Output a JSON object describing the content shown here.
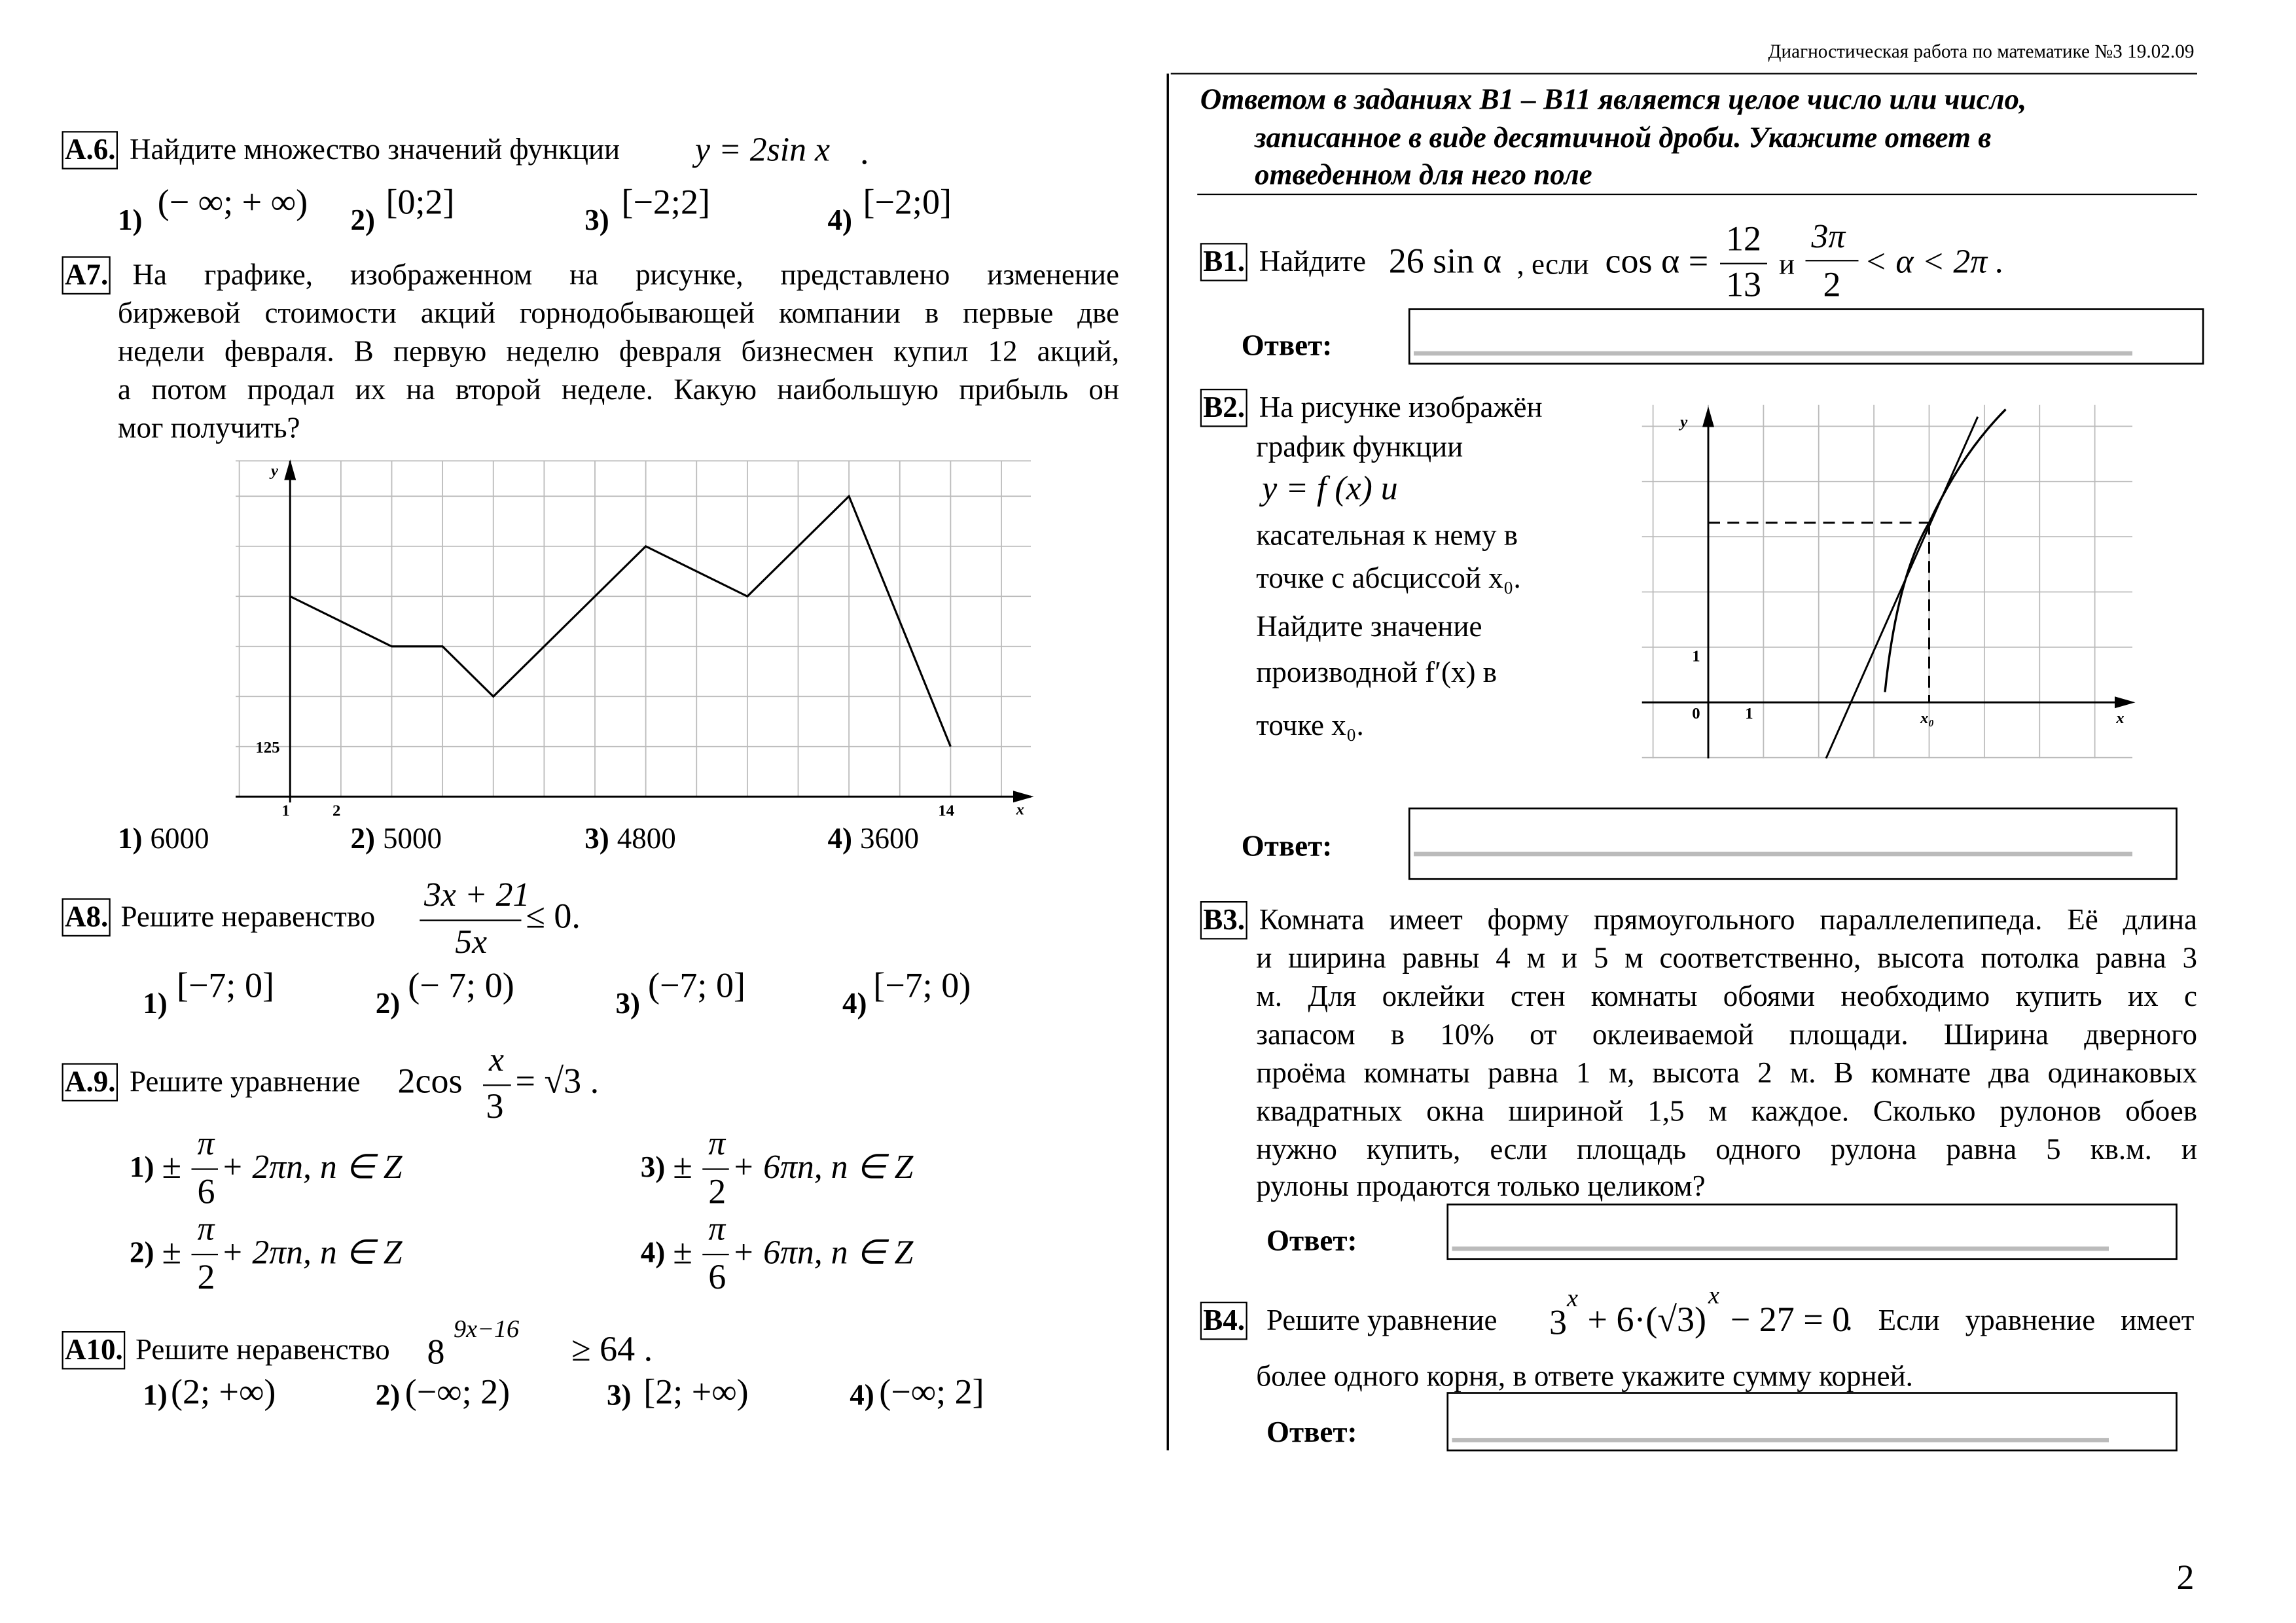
{
  "header": "Диагностическая работа по математике №3 19.02.09",
  "page_number": "2",
  "a6": {
    "label": "А.6.",
    "text": "Найдите множество значений функции",
    "formula": "y = 2sin x",
    "tail": ".",
    "options": [
      {
        "number": "1)",
        "answer": "(− ∞; + ∞)"
      },
      {
        "number": "2)",
        "answer": "[0;2]"
      },
      {
        "number": "3)",
        "answer": "[−2;2]"
      },
      {
        "number": "4)",
        "answer": "[−2;0]"
      }
    ]
  },
  "a7": {
    "label": "А7.",
    "lines": [
      "На графике, изображенном на рисунке, представлено изменение",
      "биржевой стоимости акций горнодобывающей компании в первые две",
      "недели февраля. В первую неделю февраля бизнесмен купил 12 акций,",
      "а потом продал их на второй неделе. Какую наибольшую прибыль он",
      "мог получить?"
    ],
    "graph": {
      "y_label": "y",
      "x_label": "x",
      "x_tick_labels": [
        1,
        2,
        14
      ],
      "y_tick_labels": [
        125
      ],
      "x": [
        1,
        3,
        4,
        5,
        8,
        10,
        12,
        14
      ],
      "values": [
        500,
        375,
        375,
        250,
        625,
        500,
        750,
        125
      ]
    },
    "options": [
      {
        "number": "1)",
        "answer": "6000"
      },
      {
        "number": "2)",
        "answer": "5000"
      },
      {
        "number": "3)",
        "answer": "4800"
      },
      {
        "number": "4)",
        "answer": "3600"
      }
    ]
  },
  "a8": {
    "label": "А8.",
    "text": "Решите неравенство",
    "numerator": "3x + 21",
    "denominator": "5x",
    "tail": "≤ 0.",
    "options": [
      {
        "number": "1)",
        "answer": "[−7; 0]"
      },
      {
        "number": "2)",
        "answer": "(− 7; 0)"
      },
      {
        "number": "3)",
        "answer": "(−7; 0]"
      },
      {
        "number": "4)",
        "answer": "[−7; 0)"
      }
    ]
  },
  "a9": {
    "label": "А.9.",
    "text": "Решите уравнение",
    "formula": "2cos",
    "numerator": "x",
    "denominator": "3",
    "tail": "= √3 .",
    "options": [
      {
        "number": "1)",
        "sign": "±",
        "numerator": "π",
        "denominator": "6",
        "rest": "+ 2πn, n ∈ Z"
      },
      {
        "number": "3)",
        "sign": "±",
        "numerator": "π",
        "denominator": "2",
        "rest": "+ 6πn, n ∈ Z"
      },
      {
        "number": "2)",
        "sign": "±",
        "numerator": "π",
        "denominator": "2",
        "rest": "+ 2πn, n ∈ Z"
      },
      {
        "number": "4)",
        "sign": "±",
        "numerator": "π",
        "denominator": "6",
        "rest": "+ 6πn, n ∈ Z"
      }
    ]
  },
  "a10": {
    "label": "А10.",
    "text": "Решите неравенство",
    "base": "8",
    "exponent": "9x−16",
    "tail": "≥ 64 .",
    "options": [
      {
        "number": "1)",
        "answer": "(2; +∞)"
      },
      {
        "number": "2)",
        "answer": "(−∞; 2)"
      },
      {
        "number": "3)",
        "answer": "[2; +∞)"
      },
      {
        "number": "4)",
        "answer": "(−∞; 2]"
      }
    ]
  },
  "instruction": [
    "Ответом в заданиях В1 – В11 является целое число или число,",
    "записанное в виде десятичной дроби. Укажите ответ в",
    "отведенном для него поле"
  ],
  "b1": {
    "label": "В1.",
    "text": "Найдите",
    "formula": "26 sin α",
    "conj": ", если",
    "cos": "cos α =",
    "numerator": "12",
    "denominator": "13",
    "and": "и",
    "numerator2": "3π",
    "denominator2": "2",
    "tail": "< α < 2π .",
    "answer_label": "Ответ:"
  },
  "b2": {
    "label": "В2.",
    "lines": [
      "На рисунке изображён",
      "график функции",
      "y = f (x) и",
      "касательная к нему в",
      "точке с абсциссой x₀.",
      "Найдите значение",
      "производной f′(x) в",
      "точке x₀."
    ],
    "graph": {
      "y_label": "y",
      "x_label": "x",
      "origin_label": "0",
      "x_unit_label": "1",
      "y_unit_label": "1",
      "x0_label": "x₀"
    },
    "answer_label": "Ответ:"
  },
  "b3": {
    "label": "В3.",
    "lines": [
      "Комната имеет форму прямоугольного параллелепипеда. Её длина",
      "и ширина равны 4 м и 5 м соответственно, высота потолка равна 3",
      "м. Для оклейки стен комнаты обоями необходимо купить их с",
      "запасом в 10% от оклеиваемой площади. Ширина дверного",
      "проёма комнаты равна 1 м, высота 2 м. В комнате два одинаковых",
      "квадратных окна шириной 1,5 м каждое. Сколько рулонов обоев",
      "нужно купить, если площадь одного рулона равна 5 кв.м. и",
      "рулоны продаются только целиком?"
    ],
    "answer_label": "Ответ:"
  },
  "b4": {
    "label": "В4.",
    "text": "Решите уравнение",
    "base1": "3",
    "exp1": "x",
    "mid": "+ 6·(√3)",
    "exp2": "x",
    "rest": "− 27 = 0",
    "tail": ". Если уравнение имеет",
    "line2": "более одного корня, в ответе укажите сумму корней.",
    "answer_label": "Ответ:"
  }
}
